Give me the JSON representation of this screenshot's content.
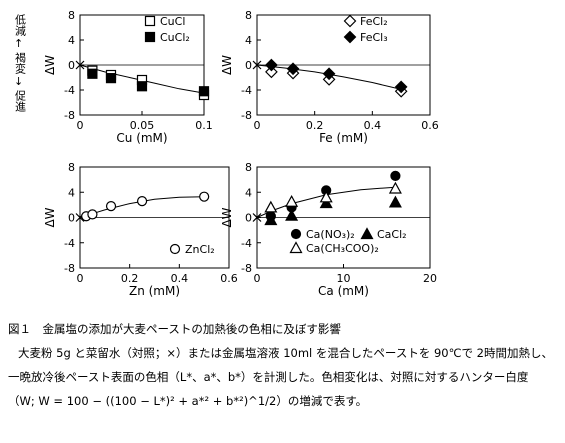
{
  "side_annotation": {
    "top": "低減",
    "middle": "褐変",
    "bottom": "促進"
  },
  "caption": {
    "title": "図１　金属塩の添加が大麦ペーストの加熱後の色相に及ぼす影響",
    "line1": "大麦粉 5g と菜留水（対照；×）または金属塩溶液 10ml を混合したペーストを 90℃で 2時間加熱し、",
    "line2": "一晩放冷後ペースト表面の色相（L*、a*、b*）を計測した。色相変化は、対照に対するハンター白度",
    "line3": "（W; W = 100 − ((100 − L*)² + a*² + b*²)^1/2）の増減で表す。"
  },
  "chart_data": [
    {
      "type": "scatter",
      "xlabel": "Cu (mM)",
      "ylabel": "ΔW",
      "xlim": [
        0,
        0.1
      ],
      "ylim": [
        -8,
        8
      ],
      "xticks": [
        "0",
        "0.05",
        "0.1"
      ],
      "yticks": [
        "-8",
        "-4",
        "0",
        "4",
        "8"
      ],
      "legend_position": "top-right",
      "control": {
        "x": 0,
        "y": 0
      },
      "series": [
        {
          "name": "CuCl",
          "marker": "open-square",
          "x": [
            0.01,
            0.025,
            0.05,
            0.1
          ],
          "y": [
            -0.9,
            -1.6,
            -2.4,
            -4.8
          ]
        },
        {
          "name": "CuCl₂",
          "marker": "filled-square",
          "x": [
            0.01,
            0.025,
            0.05,
            0.1
          ],
          "y": [
            -1.4,
            -2.1,
            -3.4,
            -4.2
          ]
        }
      ],
      "trend": [
        [
          0,
          0
        ],
        [
          0.02,
          -1.1
        ],
        [
          0.04,
          -2.0
        ],
        [
          0.06,
          -2.9
        ],
        [
          0.08,
          -3.8
        ],
        [
          0.1,
          -4.5
        ]
      ]
    },
    {
      "type": "scatter",
      "xlabel": "Fe (mM)",
      "ylabel": "ΔW",
      "xlim": [
        0,
        0.6
      ],
      "ylim": [
        -8,
        8
      ],
      "xticks": [
        "0",
        "0.2",
        "0.4",
        "0.6"
      ],
      "yticks": [
        "-8",
        "-4",
        "0",
        "4",
        "8"
      ],
      "legend_position": "top-right",
      "control": {
        "x": 0,
        "y": 0
      },
      "series": [
        {
          "name": "FeCl₂",
          "marker": "open-diamond",
          "x": [
            0.05,
            0.125,
            0.25,
            0.5
          ],
          "y": [
            -1.1,
            -1.3,
            -2.3,
            -4.2
          ]
        },
        {
          "name": "FeCl₃",
          "marker": "filled-diamond",
          "x": [
            0.05,
            0.125,
            0.25,
            0.5
          ],
          "y": [
            0.0,
            -0.6,
            -1.4,
            -3.5
          ]
        }
      ],
      "trend": [
        [
          0,
          0
        ],
        [
          0.1,
          -0.5
        ],
        [
          0.2,
          -1.1
        ],
        [
          0.3,
          -1.9
        ],
        [
          0.4,
          -2.8
        ],
        [
          0.5,
          -3.9
        ]
      ]
    },
    {
      "type": "scatter",
      "xlabel": "Zn (mM)",
      "ylabel": "ΔW",
      "xlim": [
        0,
        0.6
      ],
      "ylim": [
        -8,
        8
      ],
      "xticks": [
        "0",
        "0.2",
        "0.4",
        "0.6"
      ],
      "yticks": [
        "-8",
        "-4",
        "0",
        "4",
        "8"
      ],
      "legend_position": "bottom-right",
      "control": {
        "x": 0,
        "y": 0
      },
      "series": [
        {
          "name": "ZnCl₂",
          "marker": "open-circle",
          "x": [
            0.025,
            0.05,
            0.125,
            0.25,
            0.5
          ],
          "y": [
            0.2,
            0.5,
            1.8,
            2.6,
            3.3
          ]
        }
      ],
      "trend": [
        [
          0,
          0
        ],
        [
          0.05,
          0.6
        ],
        [
          0.1,
          1.2
        ],
        [
          0.2,
          2.2
        ],
        [
          0.3,
          2.9
        ],
        [
          0.4,
          3.2
        ],
        [
          0.5,
          3.3
        ]
      ]
    },
    {
      "type": "scatter",
      "xlabel": "Ca (mM)",
      "ylabel": "ΔW",
      "xlim": [
        0,
        25
      ],
      "ylim": [
        -8,
        8
      ],
      "xticks": [
        "0",
        "10",
        "20"
      ],
      "yticks": [
        "-8",
        "-4",
        "0",
        "4",
        "8"
      ],
      "legend_position": "bottom-right",
      "control": {
        "x": 0,
        "y": 0
      },
      "series": [
        {
          "name": "Ca(NO₃)₂",
          "marker": "filled-circle",
          "x": [
            2,
            5,
            10,
            20
          ],
          "y": [
            0.2,
            1.6,
            4.3,
            6.6
          ]
        },
        {
          "name": "CaCl₂",
          "marker": "filled-triangle",
          "x": [
            2,
            5,
            10,
            20
          ],
          "y": [
            -0.4,
            0.3,
            2.3,
            2.4
          ]
        },
        {
          "name": "Ca(CH₃COO)₂",
          "marker": "open-triangle",
          "x": [
            2,
            5,
            10,
            20
          ],
          "y": [
            1.6,
            2.5,
            3.2,
            4.6
          ]
        }
      ],
      "trend": [
        [
          0,
          0
        ],
        [
          2.5,
          1.2
        ],
        [
          5,
          2.2
        ],
        [
          10,
          3.6
        ],
        [
          15,
          4.4
        ],
        [
          20,
          4.8
        ]
      ]
    }
  ]
}
